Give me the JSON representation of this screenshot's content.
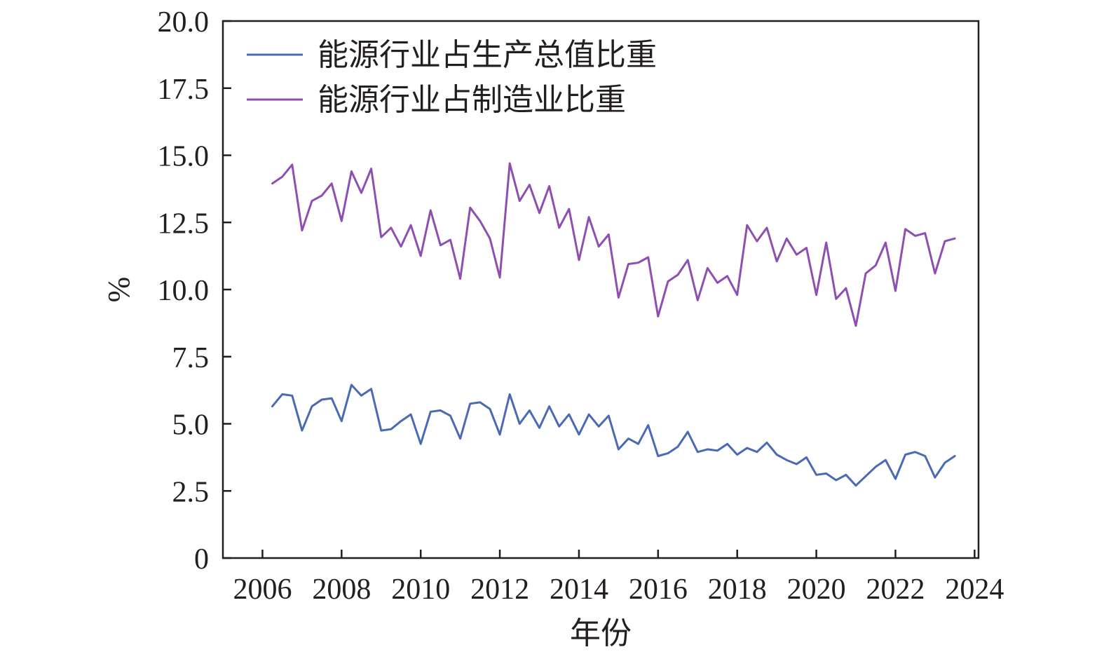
{
  "chart_data": {
    "type": "line",
    "title": "",
    "xlabel": "年份",
    "ylabel": "%",
    "xlim": [
      2005.0,
      2024.1
    ],
    "ylim": [
      0,
      20
    ],
    "x_ticks": [
      2006,
      2008,
      2010,
      2012,
      2014,
      2016,
      2018,
      2020,
      2022,
      2024
    ],
    "y_ticks": [
      0,
      2.5,
      5,
      7.5,
      10,
      12.5,
      15,
      17.5,
      20
    ],
    "y_tick_labels": [
      "0",
      "2.5",
      "5.0",
      "7.5",
      "10.0",
      "12.5",
      "15.0",
      "17.5",
      "20.0"
    ],
    "grid": false,
    "legend_position": "top-left",
    "x": [
      2006.25,
      2006.5,
      2006.75,
      2007.0,
      2007.25,
      2007.5,
      2007.75,
      2008.0,
      2008.25,
      2008.5,
      2008.75,
      2009.0,
      2009.25,
      2009.5,
      2009.75,
      2010.0,
      2010.25,
      2010.5,
      2010.75,
      2011.0,
      2011.25,
      2011.5,
      2011.75,
      2012.0,
      2012.25,
      2012.5,
      2012.75,
      2013.0,
      2013.25,
      2013.5,
      2013.75,
      2014.0,
      2014.25,
      2014.5,
      2014.75,
      2015.0,
      2015.25,
      2015.5,
      2015.75,
      2016.0,
      2016.25,
      2016.5,
      2016.75,
      2017.0,
      2017.25,
      2017.5,
      2017.75,
      2018.0,
      2018.25,
      2018.5,
      2018.75,
      2019.0,
      2019.25,
      2019.5,
      2019.75,
      2020.0,
      2020.25,
      2020.5,
      2020.75,
      2021.0,
      2021.25,
      2021.5,
      2021.75,
      2022.0,
      2022.25,
      2022.5,
      2022.75,
      2023.0,
      2023.25,
      2023.5
    ],
    "series": [
      {
        "name": "能源行业占生产总值比重",
        "color": "#4a6ab4",
        "values": [
          5.65,
          6.1,
          6.05,
          4.75,
          5.65,
          5.9,
          5.95,
          5.1,
          6.45,
          6.05,
          6.3,
          4.75,
          4.8,
          5.1,
          5.35,
          4.25,
          5.45,
          5.5,
          5.3,
          4.45,
          5.75,
          5.8,
          5.55,
          4.6,
          6.1,
          5.0,
          5.5,
          4.85,
          5.65,
          4.9,
          5.35,
          4.6,
          5.35,
          4.9,
          5.3,
          4.05,
          4.45,
          4.25,
          4.95,
          3.8,
          3.9,
          4.15,
          4.7,
          3.95,
          4.05,
          4.0,
          4.25,
          3.85,
          4.1,
          3.95,
          4.3,
          3.85,
          3.65,
          3.5,
          3.75,
          3.1,
          3.15,
          2.9,
          3.1,
          2.7,
          3.05,
          3.4,
          3.65,
          2.95,
          3.85,
          3.95,
          3.8,
          3.0,
          3.55,
          3.8
        ]
      },
      {
        "name": "能源行业占制造业比重",
        "color": "#8e4fb0",
        "values": [
          13.95,
          14.2,
          14.65,
          12.2,
          13.3,
          13.5,
          13.95,
          12.55,
          14.4,
          13.6,
          14.5,
          11.95,
          12.3,
          11.6,
          12.4,
          11.25,
          12.95,
          11.65,
          11.85,
          10.4,
          13.05,
          12.55,
          11.9,
          10.45,
          14.7,
          13.3,
          13.9,
          12.85,
          13.85,
          12.3,
          13.0,
          11.1,
          12.7,
          11.6,
          12.05,
          9.7,
          10.95,
          11.0,
          11.2,
          9.0,
          10.3,
          10.55,
          11.1,
          9.6,
          10.8,
          10.25,
          10.5,
          9.8,
          12.4,
          11.8,
          12.3,
          11.05,
          11.9,
          11.3,
          11.55,
          9.8,
          11.75,
          9.65,
          10.05,
          8.65,
          10.6,
          10.9,
          11.75,
          9.95,
          12.25,
          12.0,
          12.1,
          10.6,
          11.8,
          11.9
        ]
      }
    ]
  }
}
